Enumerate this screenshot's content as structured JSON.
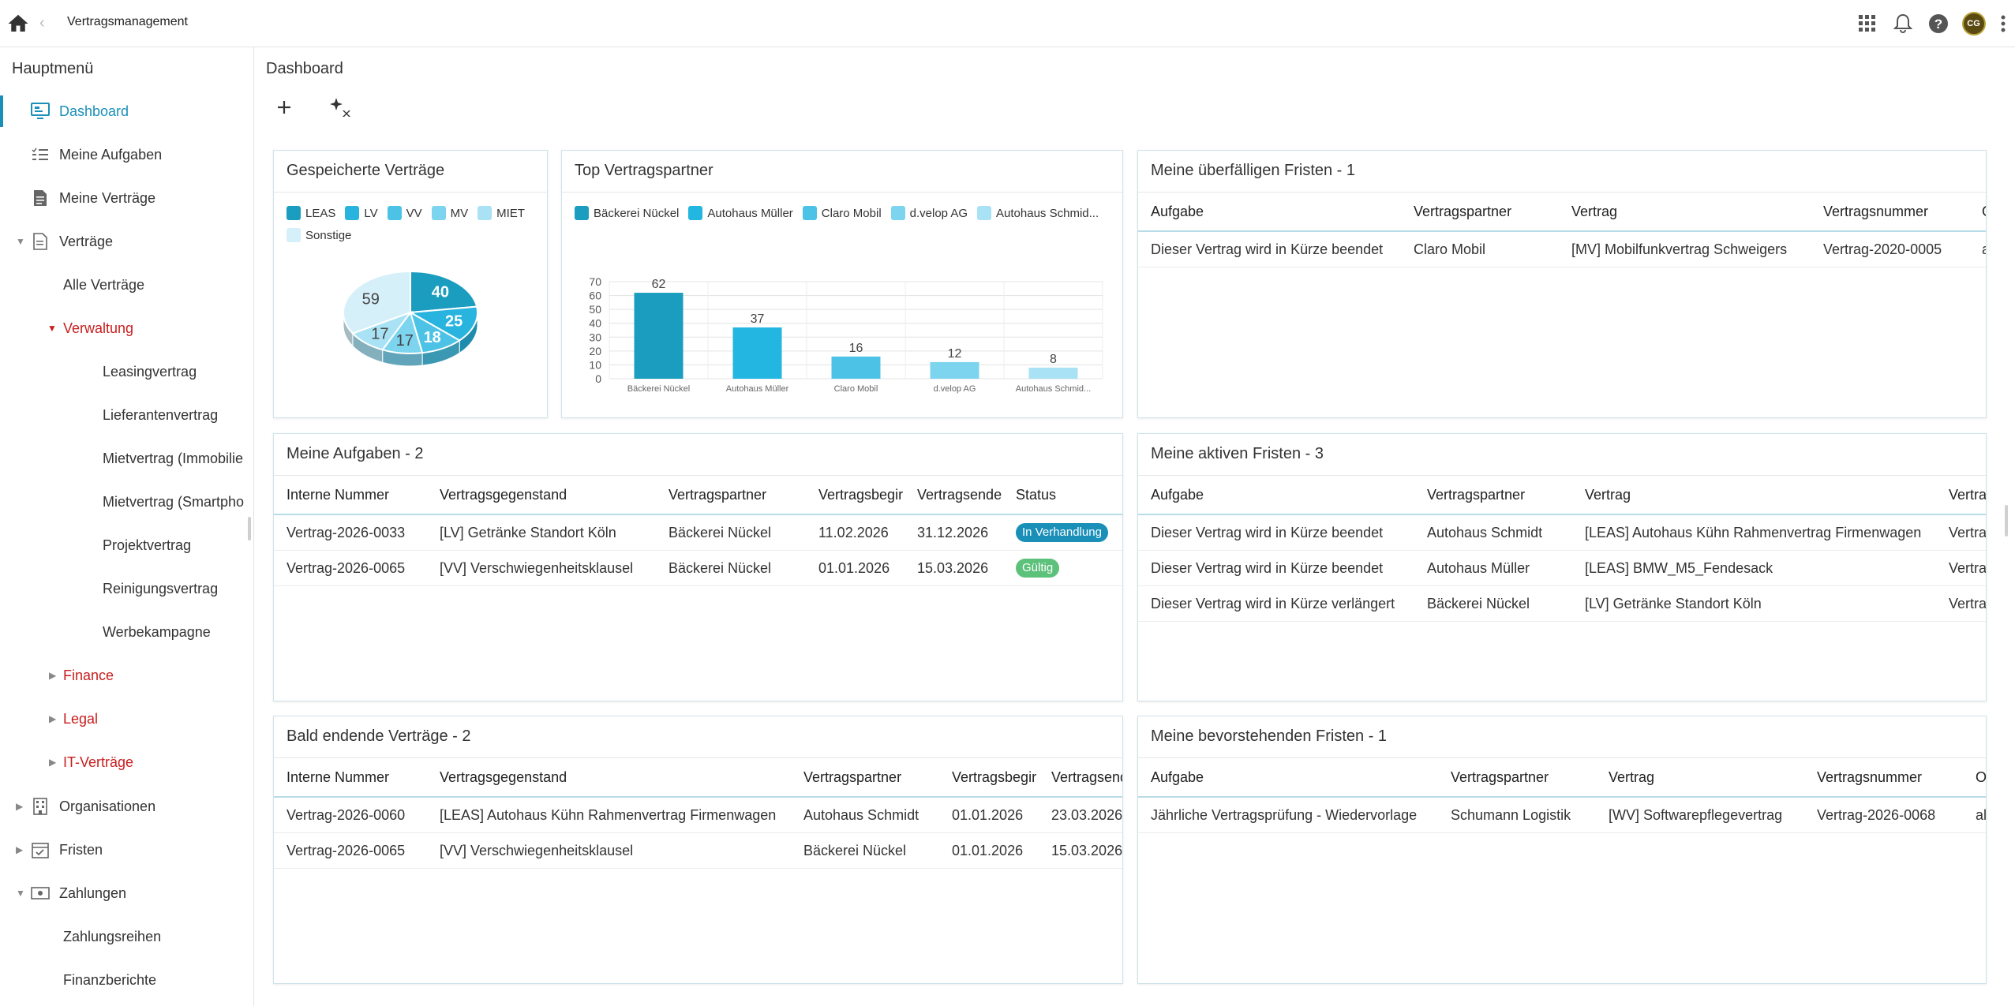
{
  "topbar": {
    "app_title": "Vertragsmanagement",
    "avatar_initials": "CG",
    "icons": [
      "home-icon",
      "apps-grid-icon",
      "bell-icon",
      "help-icon",
      "more-vert-icon"
    ]
  },
  "sidebar": {
    "title": "Hauptmenü",
    "items": [
      {
        "label": "Dashboard",
        "icon": "dashboard-icon"
      },
      {
        "label": "Meine Aufgaben",
        "icon": "tasks-icon"
      },
      {
        "label": "Meine Verträge",
        "icon": "document-icon"
      },
      {
        "label": "Verträge",
        "icon": "document-icon"
      },
      {
        "label": "Alle Verträge"
      },
      {
        "label": "Verwaltung"
      },
      {
        "label": "Leasingvertrag"
      },
      {
        "label": "Lieferantenvertrag"
      },
      {
        "label": "Mietvertrag (Immobilie"
      },
      {
        "label": "Mietvertrag (Smartpho"
      },
      {
        "label": "Projektvertrag"
      },
      {
        "label": "Reinigungsvertrag"
      },
      {
        "label": "Werbekampagne"
      },
      {
        "label": "Finance"
      },
      {
        "label": "Legal"
      },
      {
        "label": "IT-Verträge"
      },
      {
        "label": "Organisationen",
        "icon": "building-icon"
      },
      {
        "label": "Fristen",
        "icon": "calendar-check-icon"
      },
      {
        "label": "Zahlungen",
        "icon": "payment-icon"
      },
      {
        "label": "Zahlungsreihen"
      },
      {
        "label": "Finanzberichte"
      }
    ]
  },
  "main": {
    "title": "Dashboard"
  },
  "cards": {
    "saved": {
      "title": "Gespeicherte Verträge"
    },
    "partners": {
      "title": "Top Vertragspartner"
    },
    "overdue": {
      "title": "Meine überfälligen Fristen - 1",
      "headers": [
        "Aufgabe",
        "Vertragspartner",
        "Vertrag",
        "Vertragsnummer",
        "O"
      ],
      "rows": [
        [
          "Dieser Vertrag wird in Kürze beendet",
          "Claro Mobil",
          "[MV] Mobilfunkvertrag Schweigers",
          "Vertrag-2020-0005",
          "a"
        ]
      ]
    },
    "tasks": {
      "title": "Meine Aufgaben - 2",
      "headers": [
        "Interne Nummer",
        "Vertragsgegenstand",
        "Vertragspartner",
        "Vertragsbegir",
        "Vertragsende",
        "Status"
      ],
      "rows": [
        [
          "Vertrag-2026-0033",
          "[LV] Getränke Standort Köln",
          "Bäckerei Nückel",
          "11.02.2026",
          "31.12.2026",
          "In Verhandlung"
        ],
        [
          "Vertrag-2026-0065",
          "[VV] Verschwiegenheitsklausel",
          "Bäckerei Nückel",
          "01.01.2026",
          "15.03.2026",
          "Gültig"
        ]
      ],
      "status_colors": [
        "#1a8fb8",
        "#5cc17a"
      ]
    },
    "active": {
      "title": "Meine aktiven Fristen - 3",
      "headers": [
        "Aufgabe",
        "Vertragspartner",
        "Vertrag",
        "Vertra"
      ],
      "rows": [
        [
          "Dieser Vertrag wird in Kürze beendet",
          "Autohaus Schmidt",
          "[LEAS] Autohaus Kühn Rahmenvertrag Firmenwagen",
          "Vertra"
        ],
        [
          "Dieser Vertrag wird in Kürze beendet",
          "Autohaus Müller",
          "[LEAS] BMW_M5_Fendesack",
          "Vertra"
        ],
        [
          "Dieser Vertrag wird in Kürze verlängert",
          "Bäckerei Nückel",
          "[LV] Getränke Standort Köln",
          "Vertra"
        ]
      ]
    },
    "ending": {
      "title": "Bald endende Verträge - 2",
      "headers": [
        "Interne Nummer",
        "Vertragsgegenstand",
        "Vertragspartner",
        "Vertragsbegir",
        "Vertragsend"
      ],
      "rows": [
        [
          "Vertrag-2026-0060",
          "[LEAS] Autohaus Kühn Rahmenvertrag Firmenwagen",
          "Autohaus Schmidt",
          "01.01.2026",
          "23.03.2026"
        ],
        [
          "Vertrag-2026-0065",
          "[VV] Verschwiegenheitsklausel",
          "Bäckerei Nückel",
          "01.01.2026",
          "15.03.2026"
        ]
      ]
    },
    "upcoming": {
      "title": "Meine bevorstehenden Fristen - 1",
      "headers": [
        "Aufgabe",
        "Vertragspartner",
        "Vertrag",
        "Vertragsnummer",
        "O"
      ],
      "rows": [
        [
          "Jährliche Vertragsprüfung - Wiedervorlage",
          "Schumann Logistik",
          "[WV] Softwarepflegevertrag",
          "Vertrag-2026-0068",
          "al"
        ]
      ]
    }
  },
  "chart_data": [
    {
      "type": "pie",
      "title": "Gespeicherte Verträge",
      "legend": "top",
      "slices": [
        {
          "label": "LEAS",
          "value": 40,
          "color": "#1a9dbf"
        },
        {
          "label": "LV",
          "value": 25,
          "color": "#28b4de"
        },
        {
          "label": "VV",
          "value": 18,
          "color": "#4cc3e6"
        },
        {
          "label": "MV",
          "value": 17,
          "color": "#7dd4ee"
        },
        {
          "label": "MIET",
          "value": 17,
          "color": "#a9e2f4"
        },
        {
          "label": "Sonstige",
          "value": 59,
          "color": "#d6f0f9"
        }
      ]
    },
    {
      "type": "bar",
      "title": "Top Vertragspartner",
      "legend": "top",
      "categories": [
        "Bäckerei Nückel",
        "Autohaus Müller",
        "Claro Mobil",
        "d.velop AG",
        "Autohaus Schmid..."
      ],
      "values": [
        62,
        37,
        16,
        12,
        8
      ],
      "colors": [
        "#1a9dbf",
        "#22b6e0",
        "#4cc3e6",
        "#7dd4ee",
        "#a9e2f4"
      ],
      "ylim": [
        0,
        70
      ],
      "yticks": [
        0,
        10,
        20,
        30,
        40,
        50,
        60,
        70
      ],
      "grid": true
    }
  ]
}
